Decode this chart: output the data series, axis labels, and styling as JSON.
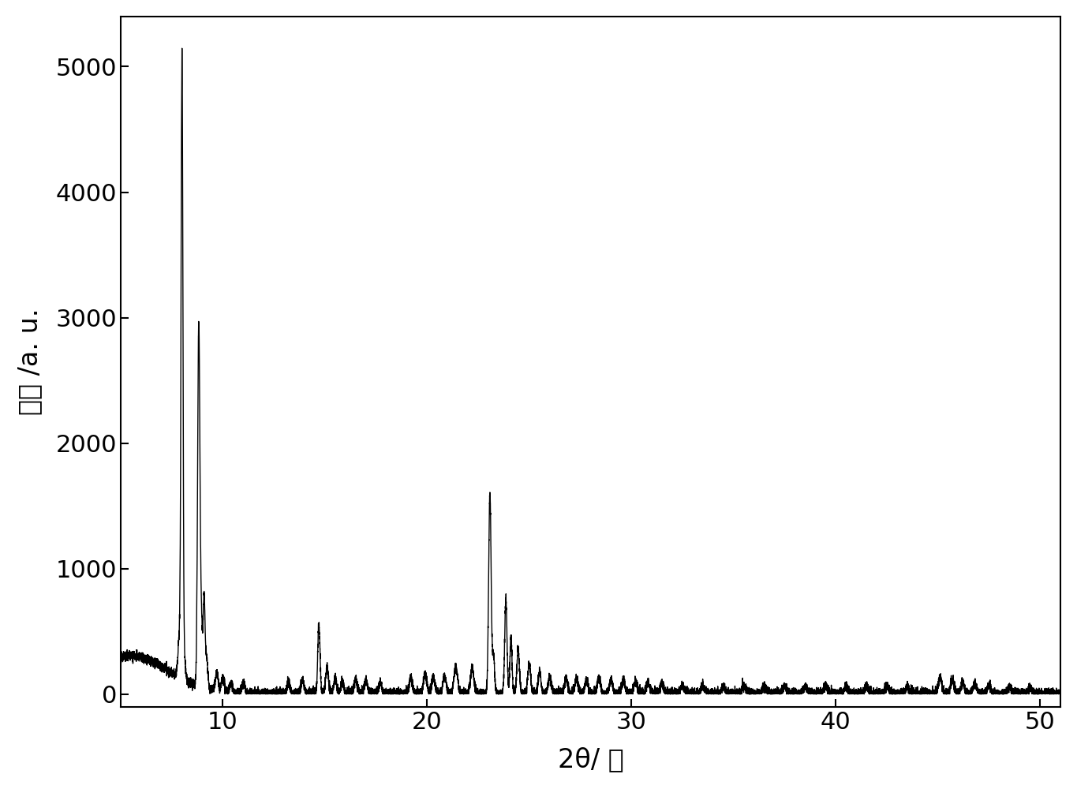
{
  "xlabel": "2θ/ 度",
  "ylabel": "强度 /a. u.",
  "xlim": [
    5,
    51
  ],
  "ylim": [
    -100,
    5400
  ],
  "yticks": [
    0,
    1000,
    2000,
    3000,
    4000,
    5000
  ],
  "xticks": [
    10,
    20,
    30,
    40,
    50
  ],
  "line_color": "#000000",
  "background_color": "#ffffff",
  "linewidth": 1.0,
  "xlabel_fontsize": 24,
  "ylabel_fontsize": 24,
  "tick_fontsize": 22
}
